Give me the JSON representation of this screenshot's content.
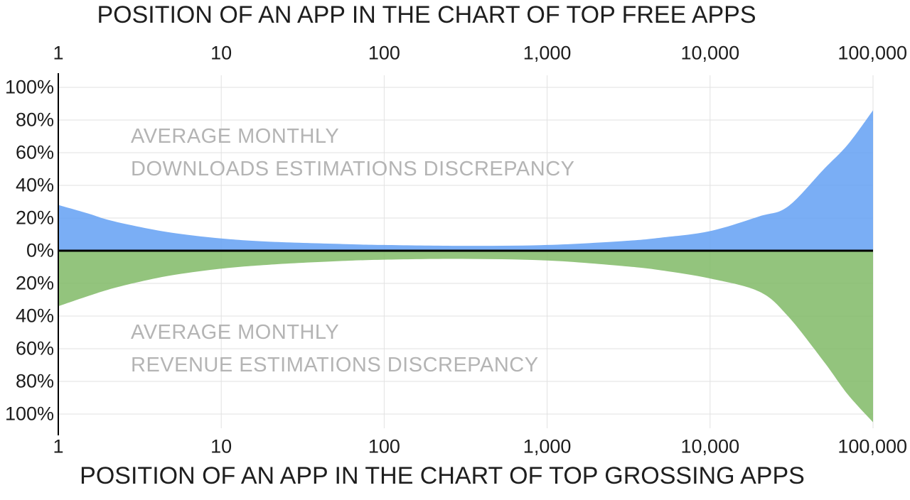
{
  "titles": {
    "top": "POSITION OF AN APP IN THE CHART OF TOP FREE APPS",
    "bottom": "POSITION OF AN APP IN THE CHART OF TOP GROSSING APPS"
  },
  "watermarks": {
    "downloads_line1": "AVERAGE MONTHLY",
    "downloads_line2": "DOWNLOADS ESTIMATIONS DISCREPANCY",
    "revenue_line1": "AVERAGE MONTHLY",
    "revenue_line2": "REVENUE ESTIMATIONS DISCREPANCY"
  },
  "axes": {
    "x_ticks": [
      {
        "value": 1,
        "label": "1"
      },
      {
        "value": 10,
        "label": "10"
      },
      {
        "value": 100,
        "label": "100"
      },
      {
        "value": 1000,
        "label": "1,000"
      },
      {
        "value": 10000,
        "label": "10,000"
      },
      {
        "value": 100000,
        "label": "100,000"
      }
    ],
    "y_ticks": [
      {
        "pct": 100,
        "label": "100%"
      },
      {
        "pct": 80,
        "label": "80%"
      },
      {
        "pct": 60,
        "label": "60%"
      },
      {
        "pct": 40,
        "label": "40%"
      },
      {
        "pct": 20,
        "label": "20%"
      },
      {
        "pct": 0,
        "label": "0%"
      },
      {
        "pct": -20,
        "label": "20%"
      },
      {
        "pct": -40,
        "label": "40%"
      },
      {
        "pct": -60,
        "label": "60%"
      },
      {
        "pct": -80,
        "label": "80%"
      },
      {
        "pct": -100,
        "label": "100%"
      }
    ]
  },
  "colors": {
    "downloads_area": "#7aaef5",
    "revenue_area": "#93c47d",
    "gridline": "#e2e2e2",
    "axis": "#000000",
    "watermark": "#b4b4b4",
    "text": "#1c1c1c"
  },
  "chart_data": {
    "type": "area",
    "title": "App store estimations discrepancy vs chart position",
    "x_axis": {
      "scale": "log",
      "min": 1,
      "max": 100000,
      "label_top": "POSITION OF AN APP IN THE CHART OF TOP FREE APPS",
      "label_bottom": "POSITION OF AN APP IN THE CHART OF TOP GROSSING APPS",
      "tick_labels": [
        "1",
        "10",
        "100",
        "1,000",
        "10,000",
        "100,000"
      ]
    },
    "y_axis": {
      "unit": "%",
      "tick_step": 20,
      "max_up": 100,
      "max_down": 100,
      "grid": true
    },
    "x": [
      1,
      1.5,
      2,
      3,
      5,
      10,
      20,
      50,
      100,
      300,
      1000,
      3000,
      5000,
      10000,
      20000,
      30000,
      50000,
      70000,
      100000
    ],
    "series": [
      {
        "name": "AVERAGE MONTHLY DOWNLOADS ESTIMATIONS DISCREPANCY",
        "orientation": "above-zero",
        "color": "#7aaef5",
        "values": [
          28,
          23,
          19,
          15,
          11,
          7.5,
          5.5,
          4.2,
          3.5,
          3,
          3.5,
          6,
          8,
          12,
          21,
          27,
          50,
          65,
          86
        ]
      },
      {
        "name": "AVERAGE MONTHLY REVENUE ESTIMATIONS DISCREPANCY",
        "orientation": "below-zero",
        "color": "#93c47d",
        "values": [
          34,
          28,
          24,
          19.5,
          15,
          11,
          8.5,
          6.5,
          5.5,
          5,
          6,
          9.5,
          12,
          17,
          25,
          40,
          68,
          88,
          105
        ]
      }
    ]
  }
}
